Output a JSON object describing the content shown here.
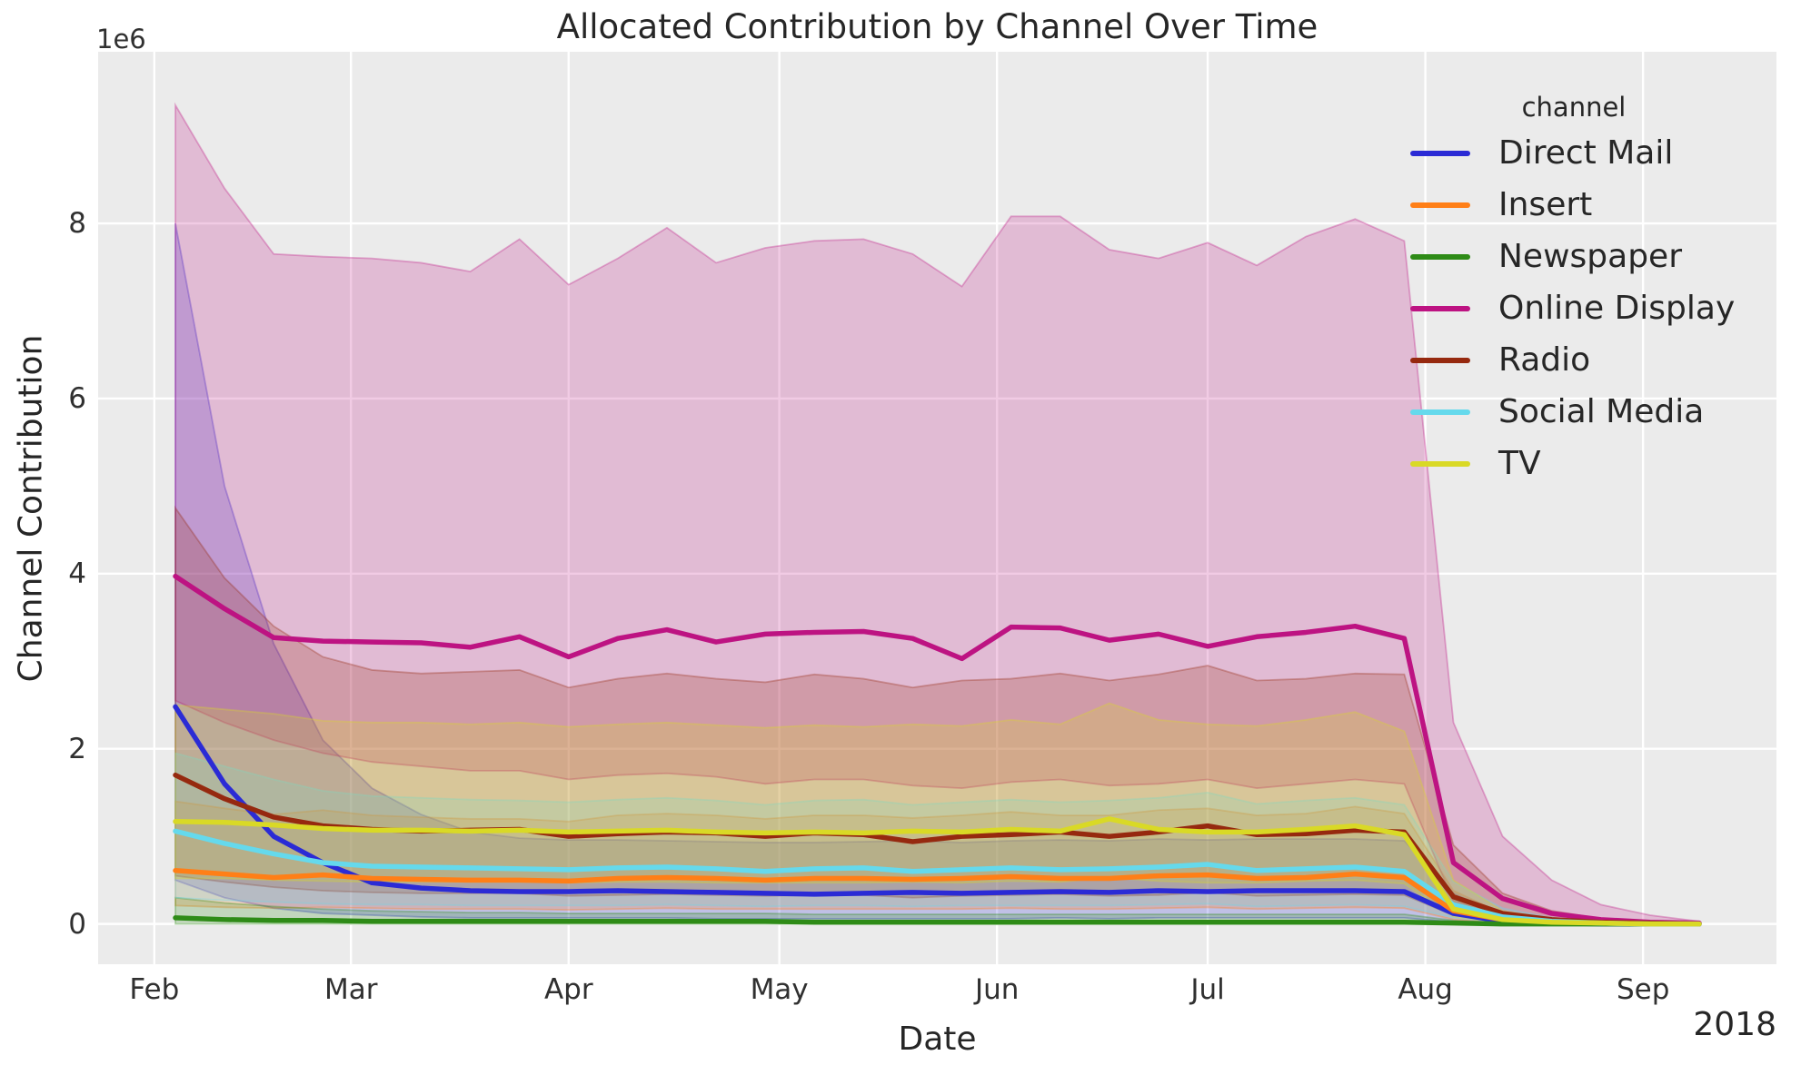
{
  "figure": {
    "title": "Allocated Contribution by Channel Over Time",
    "xlabel": "Date",
    "ylabel": "Channel Contribution",
    "offset_text": "1e6",
    "year_label": "2018",
    "plot_background": "#ebebeb",
    "grid_color": "#ffffff",
    "text_color": "#262626"
  },
  "legend": {
    "title": "channel",
    "entries": [
      {
        "label": "Direct Mail",
        "color": "#2b2bd5"
      },
      {
        "label": "Insert",
        "color": "#ff7f17"
      },
      {
        "label": "Newspaper",
        "color": "#2e8b17"
      },
      {
        "label": "Online Display",
        "color": "#bd1382"
      },
      {
        "label": "Radio",
        "color": "#96290f"
      },
      {
        "label": "Social Media",
        "color": "#65d9ec"
      },
      {
        "label": "TV",
        "color": "#d9d926"
      }
    ]
  },
  "chart_data": {
    "type": "line",
    "title": "Allocated Contribution by Channel Over Time",
    "xlabel": "Date",
    "ylabel": "Channel Contribution",
    "y_unit": "1e6",
    "grid": true,
    "legend_position": "upper right",
    "xlim": [
      "2018-01-24",
      "2018-09-20"
    ],
    "ylim": [
      -0.46,
      9.96
    ],
    "yticks": [
      0,
      2,
      4,
      6,
      8
    ],
    "xticks": [
      {
        "label": "Feb",
        "date": "2018-02-01"
      },
      {
        "label": "Mar",
        "date": "2018-03-01"
      },
      {
        "label": "Apr",
        "date": "2018-04-01"
      },
      {
        "label": "May",
        "date": "2018-05-01"
      },
      {
        "label": "Jun",
        "date": "2018-06-01"
      },
      {
        "label": "Jul",
        "date": "2018-07-01"
      },
      {
        "label": "Aug",
        "date": "2018-08-01"
      },
      {
        "label": "Sep",
        "date": "2018-09-01"
      }
    ],
    "x": [
      "2018-02-04",
      "2018-02-11",
      "2018-02-18",
      "2018-02-25",
      "2018-03-04",
      "2018-03-11",
      "2018-03-18",
      "2018-03-25",
      "2018-04-01",
      "2018-04-08",
      "2018-04-15",
      "2018-04-22",
      "2018-04-29",
      "2018-05-06",
      "2018-05-13",
      "2018-05-20",
      "2018-05-27",
      "2018-06-03",
      "2018-06-10",
      "2018-06-17",
      "2018-06-24",
      "2018-07-01",
      "2018-07-08",
      "2018-07-15",
      "2018-07-22",
      "2018-07-29",
      "2018-08-05",
      "2018-08-12",
      "2018-08-19",
      "2018-08-26",
      "2018-09-02",
      "2018-09-09"
    ],
    "series": [
      {
        "name": "Direct Mail",
        "color": "#2b2bd5",
        "values": [
          2.48,
          1.6,
          1.0,
          0.7,
          0.47,
          0.41,
          0.38,
          0.37,
          0.37,
          0.38,
          0.37,
          0.36,
          0.35,
          0.34,
          0.35,
          0.36,
          0.35,
          0.36,
          0.37,
          0.36,
          0.38,
          0.37,
          0.38,
          0.38,
          0.38,
          0.37,
          0.12,
          0.03,
          0.01,
          0.0,
          0.0,
          0.0
        ],
        "ci_upper": [
          8.0,
          5.0,
          3.2,
          2.1,
          1.55,
          1.25,
          1.05,
          0.98,
          0.96,
          0.96,
          0.95,
          0.94,
          0.93,
          0.93,
          0.94,
          0.95,
          0.93,
          0.95,
          0.96,
          0.95,
          0.97,
          0.96,
          0.97,
          0.97,
          0.97,
          0.95,
          0.35,
          0.1,
          0.04,
          0.01,
          0.0,
          0.0
        ],
        "ci_lower": [
          0.5,
          0.3,
          0.18,
          0.12,
          0.1,
          0.08,
          0.07,
          0.07,
          0.07,
          0.07,
          0.07,
          0.06,
          0.06,
          0.06,
          0.06,
          0.06,
          0.06,
          0.06,
          0.07,
          0.06,
          0.07,
          0.07,
          0.07,
          0.07,
          0.07,
          0.07,
          0.02,
          0.0,
          0.0,
          0.0,
          0.0,
          0.0
        ]
      },
      {
        "name": "Insert",
        "color": "#ff7f17",
        "values": [
          0.61,
          0.57,
          0.53,
          0.56,
          0.52,
          0.51,
          0.5,
          0.5,
          0.49,
          0.52,
          0.53,
          0.52,
          0.5,
          0.52,
          0.52,
          0.51,
          0.52,
          0.54,
          0.52,
          0.52,
          0.55,
          0.56,
          0.52,
          0.53,
          0.57,
          0.53,
          0.15,
          0.05,
          0.02,
          0.01,
          0.0,
          0.0
        ],
        "ci_upper": [
          1.4,
          1.32,
          1.25,
          1.3,
          1.24,
          1.22,
          1.2,
          1.2,
          1.17,
          1.24,
          1.26,
          1.24,
          1.2,
          1.24,
          1.24,
          1.21,
          1.24,
          1.28,
          1.24,
          1.24,
          1.3,
          1.32,
          1.24,
          1.26,
          1.34,
          1.26,
          0.38,
          0.12,
          0.05,
          0.01,
          0.0,
          0.0
        ],
        "ci_lower": [
          0.21,
          0.19,
          0.18,
          0.19,
          0.18,
          0.17,
          0.17,
          0.17,
          0.16,
          0.17,
          0.18,
          0.17,
          0.17,
          0.17,
          0.17,
          0.17,
          0.17,
          0.18,
          0.17,
          0.17,
          0.18,
          0.19,
          0.17,
          0.18,
          0.19,
          0.18,
          0.05,
          0.01,
          0.0,
          0.0,
          0.0,
          0.0
        ]
      },
      {
        "name": "Newspaper",
        "color": "#2e8b17",
        "values": [
          0.07,
          0.05,
          0.04,
          0.04,
          0.03,
          0.03,
          0.03,
          0.03,
          0.03,
          0.03,
          0.03,
          0.03,
          0.03,
          0.02,
          0.02,
          0.02,
          0.02,
          0.02,
          0.02,
          0.02,
          0.02,
          0.02,
          0.02,
          0.02,
          0.02,
          0.02,
          0.01,
          0.0,
          0.0,
          0.0,
          0.0,
          0.0
        ],
        "ci_upper": [
          0.3,
          0.24,
          0.2,
          0.17,
          0.15,
          0.14,
          0.13,
          0.13,
          0.12,
          0.12,
          0.12,
          0.12,
          0.12,
          0.11,
          0.11,
          0.11,
          0.11,
          0.11,
          0.11,
          0.11,
          0.11,
          0.11,
          0.11,
          0.11,
          0.11,
          0.11,
          0.04,
          0.01,
          0.0,
          0.0,
          0.0,
          0.0
        ],
        "ci_lower": [
          0.0,
          0.0,
          0.0,
          0.0,
          0.0,
          0.0,
          0.0,
          0.0,
          0.0,
          0.0,
          0.0,
          0.0,
          0.0,
          0.0,
          0.0,
          0.0,
          0.0,
          0.0,
          0.0,
          0.0,
          0.0,
          0.0,
          0.0,
          0.0,
          0.0,
          0.0,
          0.0,
          0.0,
          0.0,
          0.0,
          0.0,
          0.0
        ]
      },
      {
        "name": "Online Display",
        "color": "#bd1382",
        "values": [
          3.97,
          3.6,
          3.27,
          3.23,
          3.22,
          3.21,
          3.16,
          3.28,
          3.05,
          3.26,
          3.36,
          3.22,
          3.31,
          3.33,
          3.34,
          3.26,
          3.03,
          3.39,
          3.38,
          3.24,
          3.31,
          3.17,
          3.28,
          3.33,
          3.4,
          3.26,
          0.7,
          0.29,
          0.12,
          0.05,
          0.02,
          0.01
        ],
        "ci_upper": [
          9.35,
          8.4,
          7.65,
          7.62,
          7.6,
          7.55,
          7.45,
          7.82,
          7.3,
          7.6,
          7.95,
          7.55,
          7.72,
          7.8,
          7.82,
          7.65,
          7.28,
          8.08,
          8.08,
          7.7,
          7.6,
          7.78,
          7.52,
          7.85,
          8.05,
          7.8,
          2.3,
          1.0,
          0.5,
          0.22,
          0.1,
          0.03
        ],
        "ci_lower": [
          2.55,
          2.3,
          2.1,
          1.95,
          1.85,
          1.8,
          1.75,
          1.75,
          1.65,
          1.7,
          1.72,
          1.68,
          1.6,
          1.65,
          1.65,
          1.58,
          1.55,
          1.62,
          1.65,
          1.58,
          1.6,
          1.65,
          1.55,
          1.6,
          1.65,
          1.6,
          0.25,
          0.1,
          0.04,
          0.02,
          0.01,
          0.0
        ]
      },
      {
        "name": "Radio",
        "color": "#96290f",
        "values": [
          1.7,
          1.43,
          1.22,
          1.12,
          1.08,
          1.06,
          1.07,
          1.08,
          1.0,
          1.03,
          1.05,
          1.04,
          1.0,
          1.04,
          1.02,
          0.94,
          1.0,
          1.02,
          1.05,
          1.0,
          1.05,
          1.12,
          1.02,
          1.03,
          1.07,
          1.05,
          0.31,
          0.12,
          0.05,
          0.02,
          0.01,
          0.0
        ],
        "ci_upper": [
          4.75,
          3.95,
          3.4,
          3.05,
          2.9,
          2.86,
          2.88,
          2.9,
          2.7,
          2.8,
          2.86,
          2.8,
          2.76,
          2.85,
          2.8,
          2.7,
          2.78,
          2.8,
          2.86,
          2.78,
          2.85,
          2.95,
          2.78,
          2.8,
          2.86,
          2.85,
          0.9,
          0.35,
          0.15,
          0.06,
          0.02,
          0.0
        ],
        "ci_lower": [
          0.55,
          0.48,
          0.42,
          0.38,
          0.36,
          0.35,
          0.35,
          0.35,
          0.32,
          0.33,
          0.34,
          0.33,
          0.32,
          0.33,
          0.33,
          0.3,
          0.32,
          0.33,
          0.34,
          0.32,
          0.33,
          0.36,
          0.32,
          0.33,
          0.34,
          0.33,
          0.1,
          0.03,
          0.01,
          0.0,
          0.0,
          0.0
        ]
      },
      {
        "name": "Social Media",
        "color": "#65d9ec",
        "values": [
          1.06,
          0.92,
          0.8,
          0.7,
          0.66,
          0.65,
          0.64,
          0.63,
          0.62,
          0.64,
          0.65,
          0.63,
          0.6,
          0.63,
          0.64,
          0.6,
          0.62,
          0.64,
          0.62,
          0.63,
          0.65,
          0.68,
          0.61,
          0.63,
          0.65,
          0.6,
          0.22,
          0.08,
          0.03,
          0.01,
          0.0,
          0.0
        ],
        "ci_upper": [
          1.95,
          1.8,
          1.65,
          1.52,
          1.46,
          1.44,
          1.42,
          1.41,
          1.39,
          1.42,
          1.44,
          1.41,
          1.36,
          1.41,
          1.42,
          1.36,
          1.39,
          1.42,
          1.39,
          1.41,
          1.44,
          1.5,
          1.37,
          1.41,
          1.44,
          1.36,
          0.48,
          0.18,
          0.07,
          0.02,
          0.0,
          0.0
        ],
        "ci_lower": [
          0.3,
          0.27,
          0.25,
          0.23,
          0.22,
          0.22,
          0.21,
          0.21,
          0.21,
          0.21,
          0.22,
          0.21,
          0.2,
          0.21,
          0.21,
          0.2,
          0.21,
          0.21,
          0.21,
          0.21,
          0.22,
          0.23,
          0.2,
          0.21,
          0.22,
          0.2,
          0.07,
          0.02,
          0.01,
          0.0,
          0.0,
          0.0
        ]
      },
      {
        "name": "TV",
        "color": "#d9d926",
        "values": [
          1.17,
          1.16,
          1.13,
          1.09,
          1.07,
          1.07,
          1.06,
          1.07,
          1.05,
          1.06,
          1.07,
          1.05,
          1.04,
          1.05,
          1.04,
          1.06,
          1.05,
          1.08,
          1.06,
          1.2,
          1.08,
          1.05,
          1.05,
          1.08,
          1.12,
          1.02,
          0.17,
          0.05,
          0.02,
          0.01,
          0.0,
          0.0
        ],
        "ci_upper": [
          2.5,
          2.45,
          2.4,
          2.32,
          2.3,
          2.3,
          2.28,
          2.3,
          2.25,
          2.28,
          2.3,
          2.27,
          2.24,
          2.27,
          2.25,
          2.28,
          2.26,
          2.33,
          2.28,
          2.52,
          2.33,
          2.28,
          2.26,
          2.33,
          2.42,
          2.2,
          0.5,
          0.15,
          0.06,
          0.02,
          0.0,
          0.0
        ],
        "ci_lower": [
          0.52,
          0.52,
          0.5,
          0.49,
          0.48,
          0.48,
          0.48,
          0.48,
          0.47,
          0.48,
          0.48,
          0.47,
          0.47,
          0.47,
          0.47,
          0.48,
          0.47,
          0.49,
          0.48,
          0.53,
          0.49,
          0.47,
          0.47,
          0.49,
          0.5,
          0.46,
          0.08,
          0.02,
          0.01,
          0.0,
          0.0,
          0.0
        ]
      }
    ]
  }
}
